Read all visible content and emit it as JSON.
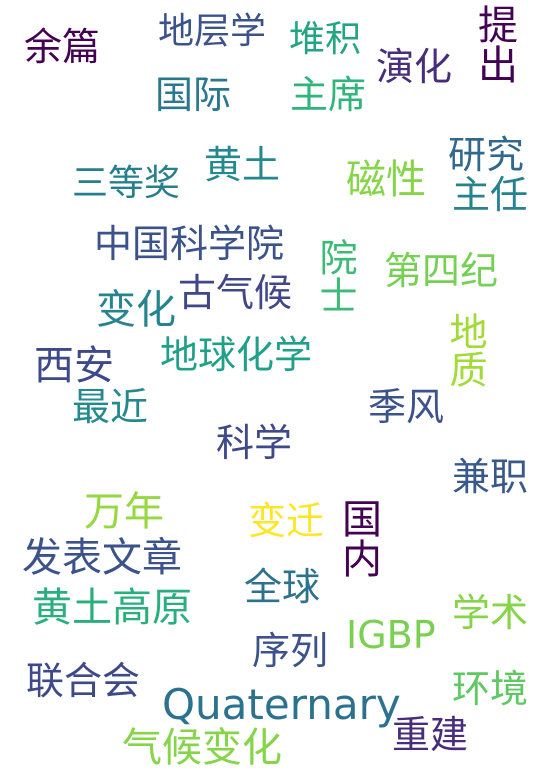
{
  "words": [
    {
      "text": "余篇",
      "color": "#440154"
    },
    {
      "text": "地层学",
      "color": "#3b528b"
    },
    {
      "text": "堆积",
      "color": "#21a585"
    },
    {
      "text": "演化",
      "color": "#472d7b"
    },
    {
      "text": "提出",
      "color": "#440154"
    },
    {
      "text": "国际",
      "color": "#2a788e"
    },
    {
      "text": "主席",
      "color": "#2fb47c"
    },
    {
      "text": "三等奖",
      "color": "#277f8e"
    },
    {
      "text": "黄土",
      "color": "#23898e"
    },
    {
      "text": "磁性",
      "color": "#86d549"
    },
    {
      "text": "研究",
      "color": "#31688e"
    },
    {
      "text": "主任",
      "color": "#26828e"
    },
    {
      "text": "中国科学院",
      "color": "#3b528b"
    },
    {
      "text": "院士",
      "color": "#3bbb75"
    },
    {
      "text": "第四纪",
      "color": "#75d054"
    },
    {
      "text": "古气候",
      "color": "#404688"
    },
    {
      "text": "变化",
      "color": "#25848e"
    },
    {
      "text": "地质",
      "color": "#a2da37"
    },
    {
      "text": "西安",
      "color": "#3e4989"
    },
    {
      "text": "地球化学",
      "color": "#1fa088"
    },
    {
      "text": "最近",
      "color": "#23898e"
    },
    {
      "text": "季风",
      "color": "#3b528b"
    },
    {
      "text": "科学",
      "color": "#3e4989"
    },
    {
      "text": "兼职",
      "color": "#38598c"
    },
    {
      "text": "万年",
      "color": "#95d840"
    },
    {
      "text": "变迁",
      "color": "#fde725"
    },
    {
      "text": "国内",
      "color": "#440154"
    },
    {
      "text": "发表文章",
      "color": "#3b528b"
    },
    {
      "text": "全球",
      "color": "#2c728e"
    },
    {
      "text": "黄土高原",
      "color": "#29af7f"
    },
    {
      "text": "学术",
      "color": "#86d549"
    },
    {
      "text": "IGBP",
      "color": "#7ad151"
    },
    {
      "text": "序列",
      "color": "#3b528b"
    },
    {
      "text": "联合会",
      "color": "#3e4989"
    },
    {
      "text": "Quaternary",
      "color": "#2c728e"
    },
    {
      "text": "环境",
      "color": "#5ec962"
    },
    {
      "text": "重建",
      "color": "#472d7b"
    },
    {
      "text": "气候变化",
      "color": "#86d549"
    }
  ]
}
